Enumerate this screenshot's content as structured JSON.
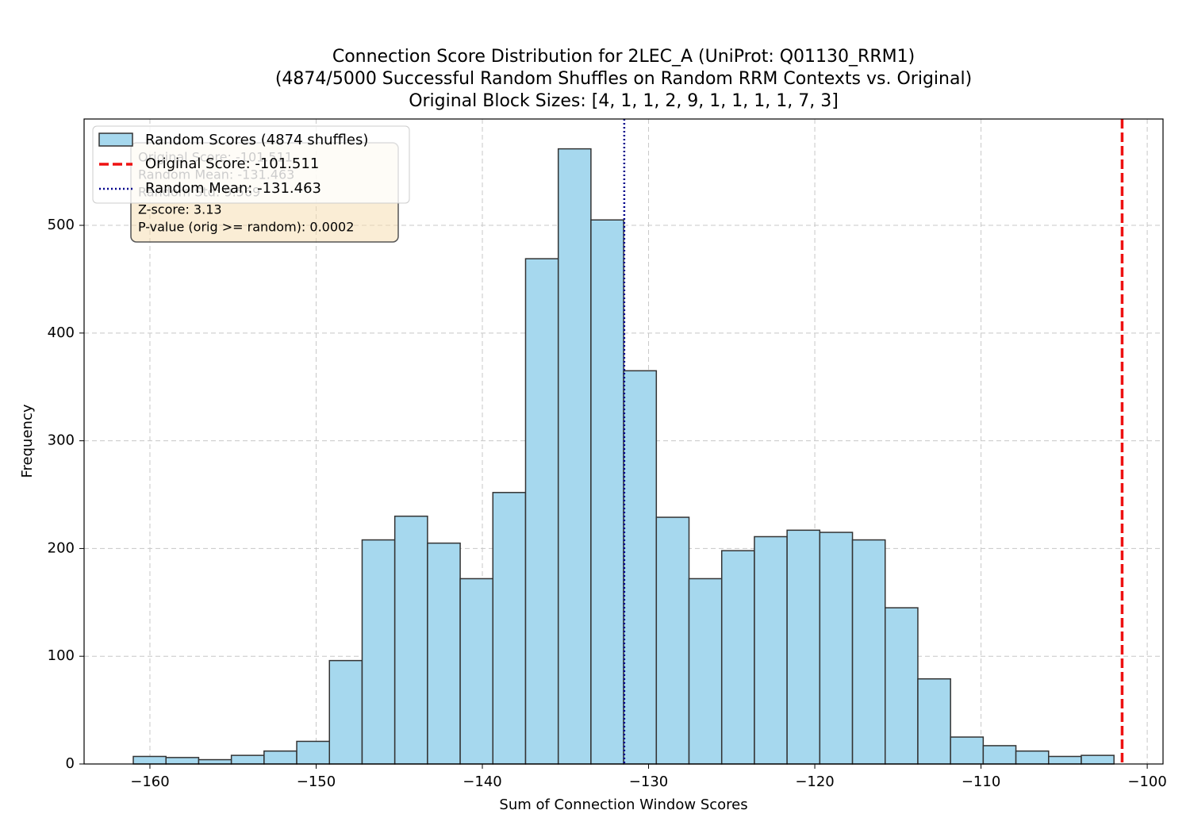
{
  "chart_data": {
    "type": "histogram",
    "title": [
      "Connection Score Distribution for 2LEC_A (UniProt: Q01130_RRM1)",
      "(4874/5000 Successful Random Shuffles on Random RRM Contexts vs. Original)",
      "Original Block Sizes: [4, 1, 1, 2, 9, 1, 1, 1, 1, 7, 3]"
    ],
    "x_label": "Sum of Connection Window Scores",
    "y_label": "Frequency",
    "series_name": "Random Scores (4874 shuffles)",
    "color": "#a6d8ee",
    "edge_color": "#333333",
    "bins": [
      -161,
      -159.033,
      -157.067,
      -155.1,
      -153.133,
      -151.167,
      -149.2,
      -147.233,
      -145.267,
      -143.3,
      -141.333,
      -139.367,
      -137.4,
      -135.433,
      -133.467,
      -131.5,
      -129.533,
      -127.567,
      -125.6,
      -123.633,
      -121.667,
      -119.7,
      -117.733,
      -115.767,
      -113.8,
      -111.833,
      -109.867,
      -107.9,
      -105.933,
      -103.967,
      -102
    ],
    "counts": [
      7,
      6,
      4,
      8,
      12,
      21,
      96,
      208,
      230,
      205,
      172,
      252,
      469,
      571,
      505,
      365,
      229,
      172,
      198,
      211,
      217,
      215,
      208,
      145,
      79,
      25,
      17,
      12,
      7,
      8
    ],
    "vlines": [
      {
        "name": "Original Score: -101.511",
        "value": -101.511,
        "color": "#ee1111",
        "style": "dashed"
      },
      {
        "name": "Random Mean: -131.463",
        "value": -131.463,
        "color": "#00008b",
        "style": "dotted"
      }
    ],
    "stats_box": [
      "Original Score: -101.511",
      "Random Mean: -131.463",
      "Random Std: 9.569",
      "Z-score: 3.13",
      "P-value (orig >= random): 0.0002"
    ],
    "xlim": [
      -163.96,
      -99.05
    ],
    "ylim": [
      0,
      598.7
    ],
    "xticks": [
      {
        "value": -160,
        "label": "−160"
      },
      {
        "value": -150,
        "label": "−150"
      },
      {
        "value": -140,
        "label": "−140"
      },
      {
        "value": -130,
        "label": "−130"
      },
      {
        "value": -120,
        "label": "−120"
      },
      {
        "value": -110,
        "label": "−110"
      },
      {
        "value": -100,
        "label": "−100"
      }
    ],
    "yticks": [
      0,
      100,
      200,
      300,
      400,
      500
    ],
    "grid": true,
    "legend": "upper left"
  }
}
